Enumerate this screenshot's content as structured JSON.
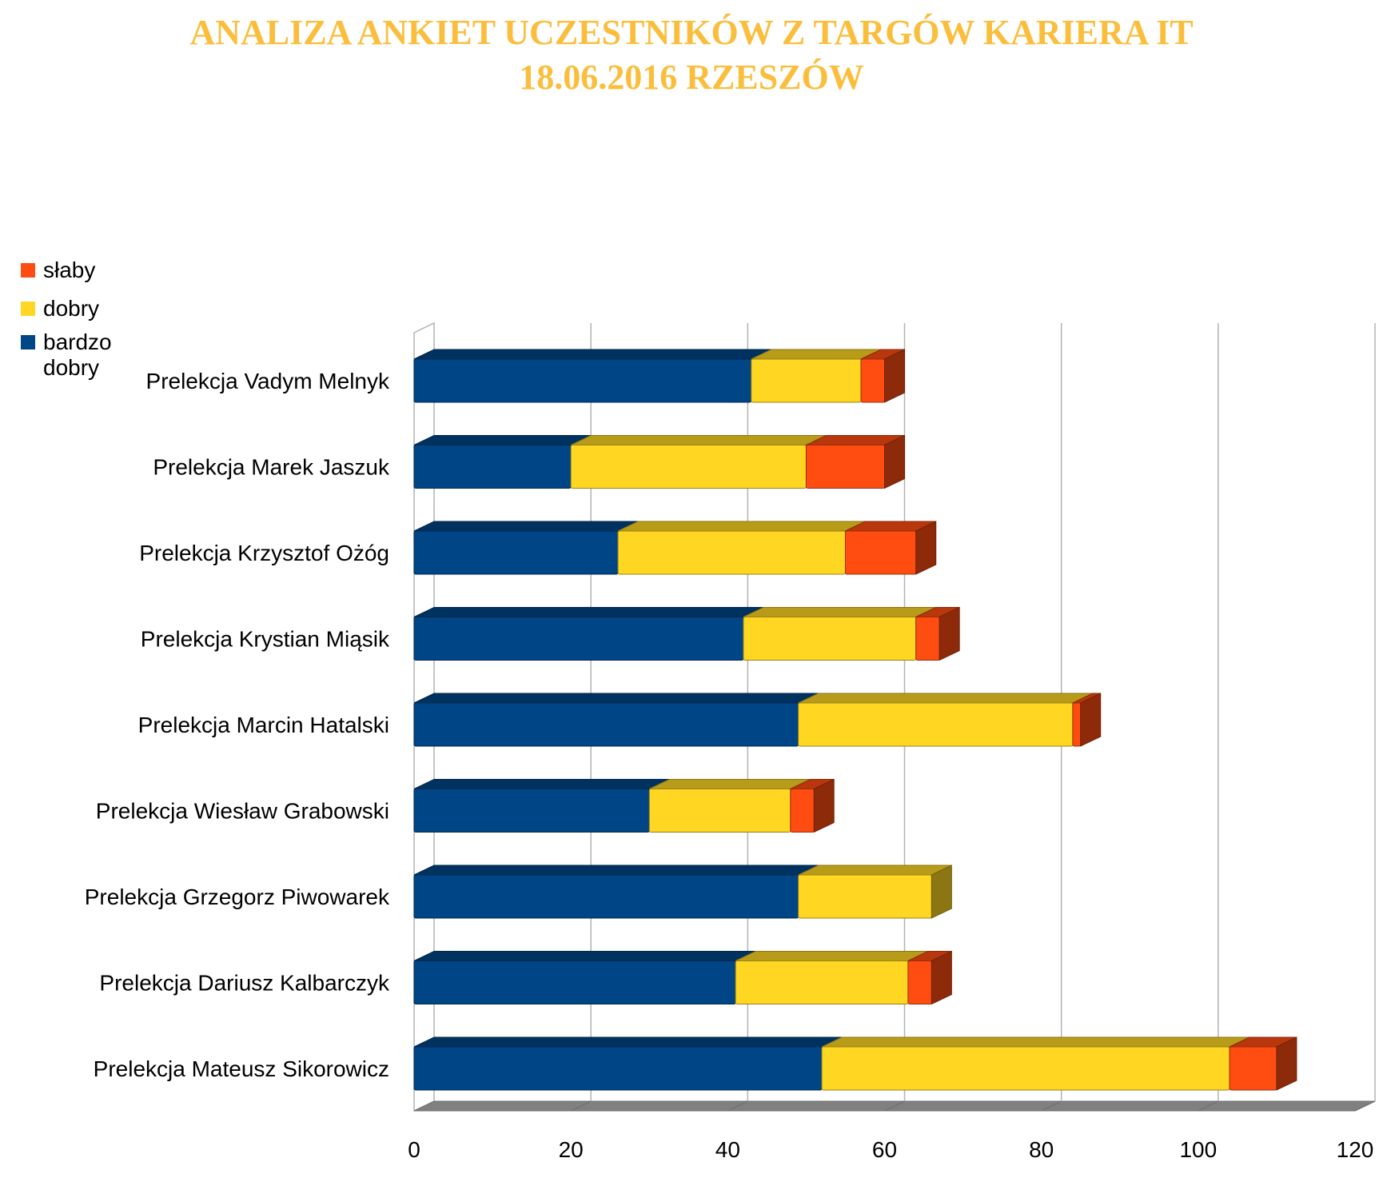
{
  "title": {
    "line1": "ANALIZA ANKIET UCZESTNIKÓW Z TARGÓW KARIERA IT",
    "line2": "18.06.2016 RZESZÓW",
    "color": "#FBBE3C"
  },
  "legend": [
    {
      "name": "słaby",
      "color": "#FF4D12"
    },
    {
      "name": "dobry",
      "color": "#FFD723"
    },
    {
      "name": "bardzo dobry",
      "color": "#004586"
    }
  ],
  "chart_data": {
    "type": "bar",
    "orientation": "horizontal",
    "stacked": true,
    "three_d": true,
    "categories": [
      "Prelekcja Vadym Melnyk",
      "Prelekcja Marek Jaszuk",
      "Prelekcja Krzysztof Ożóg",
      "Prelekcja Krystian Miąsik",
      "Prelekcja Marcin Hatalski",
      "Prelekcja Wiesław Grabowski",
      "Prelekcja Grzegorz Piwowarek",
      "Prelekcja Dariusz Kalbarczyk",
      "Prelekcja Mateusz Sikorowicz"
    ],
    "series": [
      {
        "name": "bardzo dobry",
        "color": "#004586",
        "values": [
          43,
          20,
          26,
          42,
          49,
          30,
          49,
          41,
          52
        ]
      },
      {
        "name": "dobry",
        "color": "#FFD723",
        "values": [
          14,
          30,
          29,
          22,
          35,
          18,
          17,
          22,
          52
        ]
      },
      {
        "name": "słaby",
        "color": "#FF4D12",
        "values": [
          3,
          10,
          9,
          3,
          1,
          3,
          0,
          3,
          6
        ]
      }
    ],
    "xlim": [
      0,
      120
    ],
    "xticks": [
      0,
      20,
      40,
      60,
      80,
      100,
      120
    ],
    "grid": true,
    "legend_position": "left-top"
  }
}
